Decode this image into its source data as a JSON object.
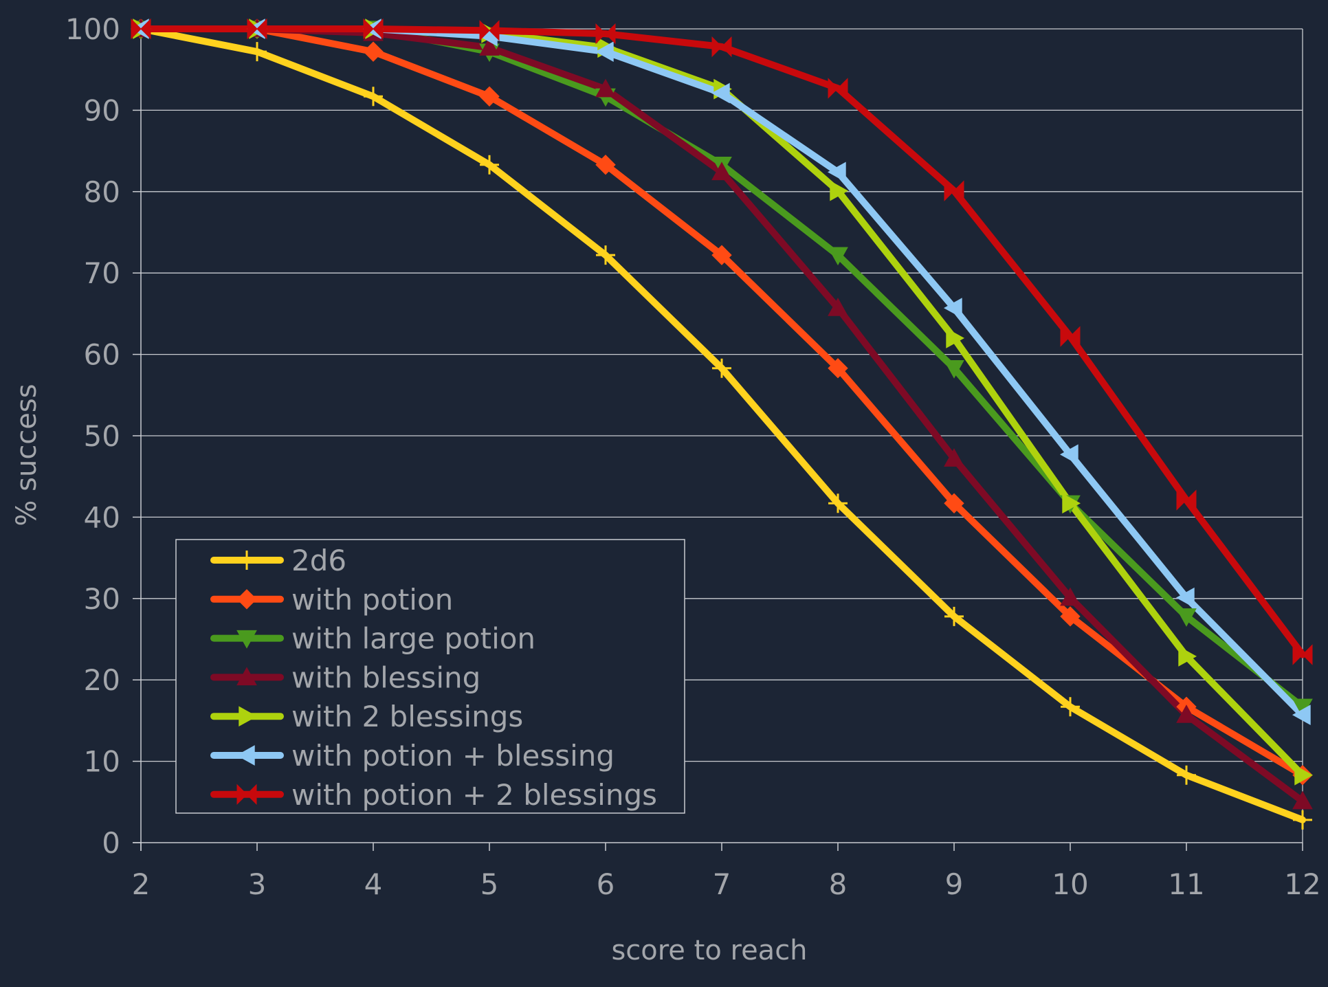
{
  "chart_data": {
    "type": "line",
    "title": "",
    "xlabel": "score to reach",
    "ylabel": "% success",
    "x": [
      2,
      3,
      4,
      5,
      6,
      7,
      8,
      9,
      10,
      11,
      12
    ],
    "xlim": [
      2,
      12
    ],
    "ylim": [
      0,
      100
    ],
    "yticks": [
      0,
      10,
      20,
      30,
      40,
      50,
      60,
      70,
      80,
      90,
      100
    ],
    "grid": true,
    "legend_position": "bottom-left",
    "colors": {
      "background": "#1c2535",
      "grid": "#c9ccd1",
      "text": "#a3a6ab"
    },
    "series": [
      {
        "name": "2d6",
        "color": "#ffd21e",
        "marker": "plus",
        "values": [
          100,
          97.2,
          91.7,
          83.3,
          72.2,
          58.3,
          41.7,
          27.8,
          16.7,
          8.3,
          2.8
        ]
      },
      {
        "name": "with potion",
        "color": "#ff4b14",
        "marker": "diamond",
        "values": [
          100,
          100,
          97.2,
          91.7,
          83.3,
          72.2,
          58.3,
          41.7,
          27.8,
          16.7,
          8.3
        ]
      },
      {
        "name": "with large potion",
        "color": "#4a9a1e",
        "marker": "triangle-down",
        "values": [
          100,
          100,
          100,
          97.2,
          91.7,
          83.3,
          72.2,
          58.3,
          41.7,
          27.8,
          16.7
        ]
      },
      {
        "name": "with blessing",
        "color": "#7e0a25",
        "marker": "triangle-up",
        "values": [
          100,
          100,
          99.5,
          97.7,
          92.6,
          82.4,
          65.7,
          47.2,
          30.1,
          15.7,
          5.1
        ]
      },
      {
        "name": "with 2 blessings",
        "color": "#aed20e",
        "marker": "triangle-right",
        "values": [
          100,
          100,
          100,
          99.5,
          97.7,
          92.6,
          80.1,
          62.0,
          41.7,
          22.9,
          8.3
        ]
      },
      {
        "name": "with potion + blessing",
        "color": "#8ec8f4",
        "marker": "triangle-left",
        "values": [
          100,
          100,
          100,
          99.1,
          97.2,
          92.1,
          82.4,
          65.7,
          47.7,
          30.1,
          15.7
        ]
      },
      {
        "name": "with potion + 2 blessings",
        "color": "#c8090c",
        "marker": "bowtie",
        "values": [
          100,
          100,
          100,
          99.8,
          99.4,
          97.8,
          92.7,
          80.1,
          62.2,
          42.1,
          23.1
        ]
      }
    ]
  }
}
